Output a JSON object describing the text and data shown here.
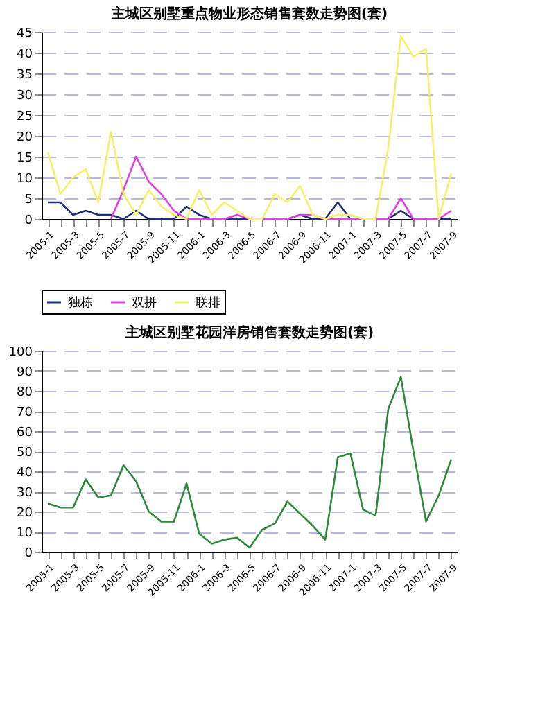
{
  "chart_data": [
    {
      "type": "line",
      "title": "主城区别墅重点物业形态销售套数走势图(套)",
      "categories": [
        "2005-1",
        null,
        "2005-3",
        null,
        "2005-5",
        null,
        "2005-7",
        null,
        "2005-9",
        null,
        "2005-11",
        null,
        "2006-1",
        null,
        "2006-3",
        null,
        "2006-5",
        null,
        "2006-7",
        null,
        "2006-9",
        null,
        "2006-11",
        null,
        "2007-1",
        null,
        "2007-3",
        null,
        "2007-5",
        null,
        "2007-7",
        null,
        "2007-9"
      ],
      "series": [
        {
          "name": "独栋",
          "color": "#1f2f7a",
          "values": [
            4,
            4,
            1,
            2,
            1,
            1,
            0,
            2,
            0,
            0,
            0,
            3,
            1,
            0,
            0,
            0,
            0,
            0,
            0,
            0,
            1,
            0,
            0,
            4,
            0,
            0,
            0,
            0,
            2,
            0,
            0,
            0,
            0
          ]
        },
        {
          "name": "双拼",
          "color": "#e040e0",
          "values": [
            null,
            null,
            null,
            null,
            null,
            0,
            7,
            15,
            9,
            6,
            2,
            0,
            0,
            0,
            0,
            1,
            0,
            0,
            0,
            0,
            1,
            1,
            0,
            0,
            0,
            0,
            0,
            0,
            5,
            0,
            0,
            0,
            2
          ]
        },
        {
          "name": "联排",
          "color": "#f5f06a",
          "values": [
            16,
            6,
            10,
            12,
            4,
            21,
            6,
            1,
            7,
            3,
            1,
            0,
            7,
            1,
            4,
            2,
            0,
            0,
            6,
            4,
            8,
            1,
            0,
            1,
            1,
            0,
            0,
            17,
            44,
            39,
            41,
            0,
            11
          ]
        }
      ],
      "ylim": [
        0,
        45
      ],
      "yticks": [
        0,
        5,
        10,
        15,
        20,
        25,
        30,
        35,
        40,
        45
      ],
      "grid": "y",
      "legend": "bottom",
      "marker": "none",
      "line_style": "solid"
    },
    {
      "type": "line",
      "title": "主城区别墅花园洋房销售套数走势图(套)",
      "categories": [
        "2005-1",
        null,
        "2005-3",
        null,
        "2005-5",
        null,
        "2005-7",
        null,
        "2005-9",
        null,
        "2005-11",
        null,
        "2006-1",
        null,
        "2006-3",
        null,
        "2006-5",
        null,
        "2006-7",
        null,
        "2006-9",
        null,
        "2006-11",
        null,
        "2007-1",
        null,
        "2007-3",
        null,
        "2007-5",
        null,
        "2007-7",
        null,
        "2007-9"
      ],
      "series": [
        {
          "color": "#2e8b3a",
          "values": [
            24,
            22,
            22,
            36,
            27,
            28,
            43,
            35,
            20,
            15,
            15,
            34,
            9,
            4,
            6,
            7,
            2,
            11,
            14,
            25,
            19,
            13,
            6,
            47,
            49,
            21,
            18,
            71,
            87,
            50,
            15,
            28,
            46
          ]
        }
      ],
      "ylim": [
        0,
        100
      ],
      "yticks": [
        0,
        10,
        20,
        30,
        40,
        50,
        60,
        70,
        80,
        90,
        100
      ],
      "grid": "y",
      "legend": false,
      "marker": "none",
      "line_style": "solid"
    }
  ]
}
